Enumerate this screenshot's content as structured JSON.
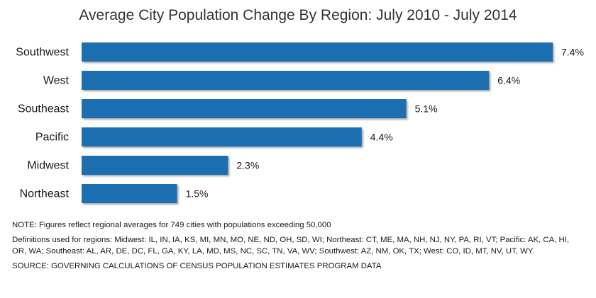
{
  "chart_data": {
    "type": "bar",
    "orientation": "horizontal",
    "title": "Average City Population Change By Region: July 2010 - July 2014",
    "categories": [
      "Southwest",
      "West",
      "Southeast",
      "Pacific",
      "Midwest",
      "Northeast"
    ],
    "values": [
      7.4,
      6.4,
      5.1,
      4.4,
      2.3,
      1.5
    ],
    "value_labels": [
      "7.4%",
      "6.4%",
      "5.1%",
      "4.4%",
      "2.3%",
      "1.5%"
    ],
    "xlabel": "",
    "ylabel": "",
    "xlim": [
      0,
      7.4
    ],
    "grid": false,
    "legend": "none",
    "bar_color": "#1f6fb2"
  },
  "notes": {
    "note": "NOTE: Figures reflect regional averages for 749 cities with populations exceeding 50,000",
    "definitions": "Definitions used for regions: Midwest: IL, IN, IA, KS, MI, MN, MO, NE, ND, OH, SD, WI; Northeast: CT, ME, MA, NH, NJ, NY, PA, RI, VT; Pacific: AK, CA, HI, OR, WA; Southeast: AL, AR, DE, DC, FL, GA, KY, LA, MD, MS, NC, SC, TN, VA, WV; Southwest: AZ, NM, OK, TX; West: CO, ID, MT, NV, UT, WY.",
    "source": "SOURCE: GOVERNING CALCULATIONS OF CENSUS POPULATION ESTIMATES PROGRAM DATA"
  }
}
